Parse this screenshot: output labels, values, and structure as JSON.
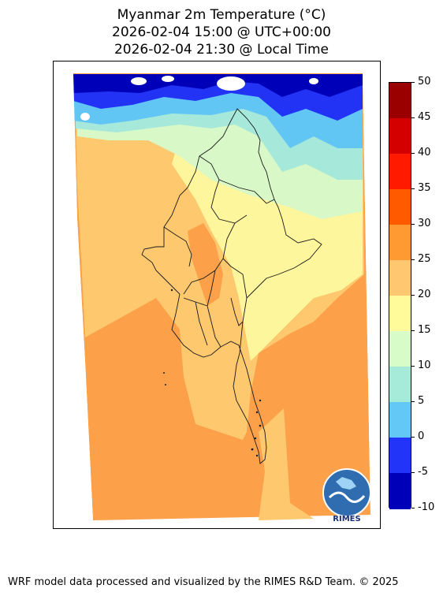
{
  "title": {
    "line1": "Myanmar 2m Temperature (°C)",
    "line2": "2026-02-04 15:00 @ UTC+00:00",
    "line3": "2026-02-04 21:30 @ Local Time"
  },
  "colorbar": {
    "levels": [
      {
        "label": "50",
        "color": "#9b0000"
      },
      {
        "label": "45",
        "color": "#d40000"
      },
      {
        "label": "40",
        "color": "#ff1a00"
      },
      {
        "label": "35",
        "color": "#ff5a00"
      },
      {
        "label": "30",
        "color": "#ff9a33"
      },
      {
        "label": "25",
        "color": "#ffc870"
      },
      {
        "label": "20",
        "color": "#fffa9a"
      },
      {
        "label": "15",
        "color": "#d8fcc8"
      },
      {
        "label": "10",
        "color": "#a6ead9"
      },
      {
        "label": "5",
        "color": "#63c8f6"
      },
      {
        "label": "0",
        "color": "#2134f8"
      },
      {
        "label": "-5",
        "color": "#0000b8"
      },
      {
        "label": "-10",
        "color": ""
      }
    ]
  },
  "logo": {
    "text": "RIMES",
    "icon": "rimes-globe-logo"
  },
  "footer": {
    "text": "WRF model data processed and visualized by the RIMES R&D Team. © 2025"
  },
  "colors": {
    "warm_orange": "#fca04a",
    "light_orange": "#fdc86e",
    "pale_yellow": "#fef69c",
    "pale_green": "#d8f9c7",
    "aqua": "#a6e9da",
    "sky_blue": "#62c6f4",
    "blue": "#2233f5",
    "deep_blue": "#0000b8",
    "border": "#1a1a1a"
  }
}
